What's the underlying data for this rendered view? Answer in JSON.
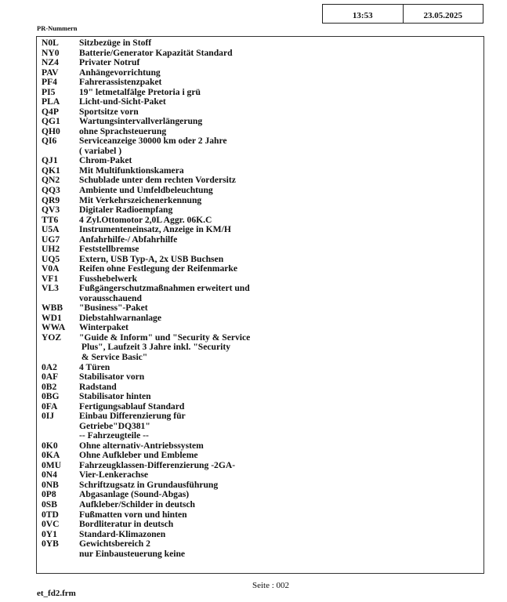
{
  "header": {
    "time": "13:53",
    "date": "23.05.2025"
  },
  "section_title": "PR-Nummern",
  "items": [
    {
      "code": "N0L",
      "lines": [
        "Sitzbezüge in Stoff"
      ]
    },
    {
      "code": "NY0",
      "lines": [
        "Batterie/Generator Kapazität Standard"
      ]
    },
    {
      "code": "NZ4",
      "lines": [
        "Privater Notruf"
      ]
    },
    {
      "code": "PAV",
      "lines": [
        "Anhängevorrichtung"
      ]
    },
    {
      "code": "PF4",
      "lines": [
        "Fahrerassistenzpaket"
      ]
    },
    {
      "code": "PI5",
      "lines": [
        "19\" letmetalfälge Pretoria i grü"
      ]
    },
    {
      "code": "PLA",
      "lines": [
        "Licht-und-Sicht-Paket"
      ]
    },
    {
      "code": "Q4P",
      "lines": [
        "Sportsitze vorn"
      ]
    },
    {
      "code": "QG1",
      "lines": [
        "Wartungsintervallverlängerung"
      ]
    },
    {
      "code": "QH0",
      "lines": [
        "ohne Sprachsteuerung"
      ]
    },
    {
      "code": "QI6",
      "lines": [
        "Serviceanzeige 30000 km oder 2 Jahre",
        "( variabel )"
      ]
    },
    {
      "code": "QJ1",
      "lines": [
        "Chrom-Paket"
      ]
    },
    {
      "code": "QK1",
      "lines": [
        "Mit Multifunktionskamera"
      ]
    },
    {
      "code": "QN2",
      "lines": [
        "Schublade unter dem rechten Vordersitz"
      ]
    },
    {
      "code": "QQ3",
      "lines": [
        "Ambiente und Umfeldbeleuchtung"
      ]
    },
    {
      "code": "QR9",
      "lines": [
        "Mit Verkehrszeichenerkennung"
      ]
    },
    {
      "code": "QV3",
      "lines": [
        "Digitaler Radioempfang"
      ]
    },
    {
      "code": "TT6",
      "lines": [
        "4 Zyl.Ottomotor 2,0L Aggr. 06K.C"
      ]
    },
    {
      "code": "U5A",
      "lines": [
        "Instrumenteneinsatz, Anzeige in KM/H"
      ]
    },
    {
      "code": "UG7",
      "lines": [
        "Anfahrhilfe-/ Abfahrhilfe"
      ]
    },
    {
      "code": "UH2",
      "lines": [
        "Feststellbremse"
      ]
    },
    {
      "code": "UQ5",
      "lines": [
        "Extern, USB Typ-A, 2x USB Buchsen"
      ]
    },
    {
      "code": "V0A",
      "lines": [
        "Reifen ohne Festlegung der Reifenmarke"
      ]
    },
    {
      "code": "VF1",
      "lines": [
        "Fusshebelwerk"
      ]
    },
    {
      "code": "VL3",
      "lines": [
        "Fußgängerschutzmaßnahmen erweitert und",
        "vorausschauend"
      ]
    },
    {
      "code": "WBB",
      "lines": [
        "\"Business\"-Paket"
      ]
    },
    {
      "code": "WD1",
      "lines": [
        "Diebstahlwarnanlage"
      ]
    },
    {
      "code": "WWA",
      "lines": [
        "Winterpaket"
      ]
    },
    {
      "code": "YOZ",
      "lines": [
        "\"Guide & Inform\" und \"Security & Service",
        " Plus\", Laufzeit 3 Jahre inkl. \"Security",
        " & Service Basic\""
      ]
    },
    {
      "code": "0A2",
      "lines": [
        "4 Türen"
      ]
    },
    {
      "code": "0AF",
      "lines": [
        "Stabilisator vorn"
      ]
    },
    {
      "code": "0B2",
      "lines": [
        "Radstand"
      ]
    },
    {
      "code": "0BG",
      "lines": [
        "Stabilisator hinten"
      ]
    },
    {
      "code": "0FA",
      "lines": [
        "Fertigungsablauf Standard"
      ]
    },
    {
      "code": "0IJ",
      "lines": [
        "Einbau Differenzierung für",
        "Getriebe\"DQ381\"",
        "-- Fahrzeugteile --"
      ]
    },
    {
      "code": "0K0",
      "lines": [
        "Ohne alternativ-Antriebssystem"
      ]
    },
    {
      "code": "0KA",
      "lines": [
        "Ohne Aufkleber und Embleme"
      ]
    },
    {
      "code": "0MU",
      "lines": [
        "Fahrzeugklassen-Differenzierung -2GA-"
      ]
    },
    {
      "code": "0N4",
      "lines": [
        "Vier-Lenkerachse"
      ]
    },
    {
      "code": "0NB",
      "lines": [
        "Schriftzugsatz in Grundausführung"
      ]
    },
    {
      "code": "0P8",
      "lines": [
        "Abgasanlage (Sound-Abgas)"
      ]
    },
    {
      "code": "0SB",
      "lines": [
        "Aufkleber/Schilder in deutsch"
      ]
    },
    {
      "code": "0TD",
      "lines": [
        "Fußmatten vorn und hinten"
      ]
    },
    {
      "code": "0VC",
      "lines": [
        "Bordliteratur in deutsch"
      ]
    },
    {
      "code": "0Y1",
      "lines": [
        "Standard-Klimazonen"
      ]
    },
    {
      "code": "0YB",
      "lines": [
        "Gewichtsbereich 2",
        "nur Einbausteuerung keine"
      ]
    }
  ],
  "footer": {
    "page": "Seite : 002",
    "file": "et_fd2.frm"
  }
}
